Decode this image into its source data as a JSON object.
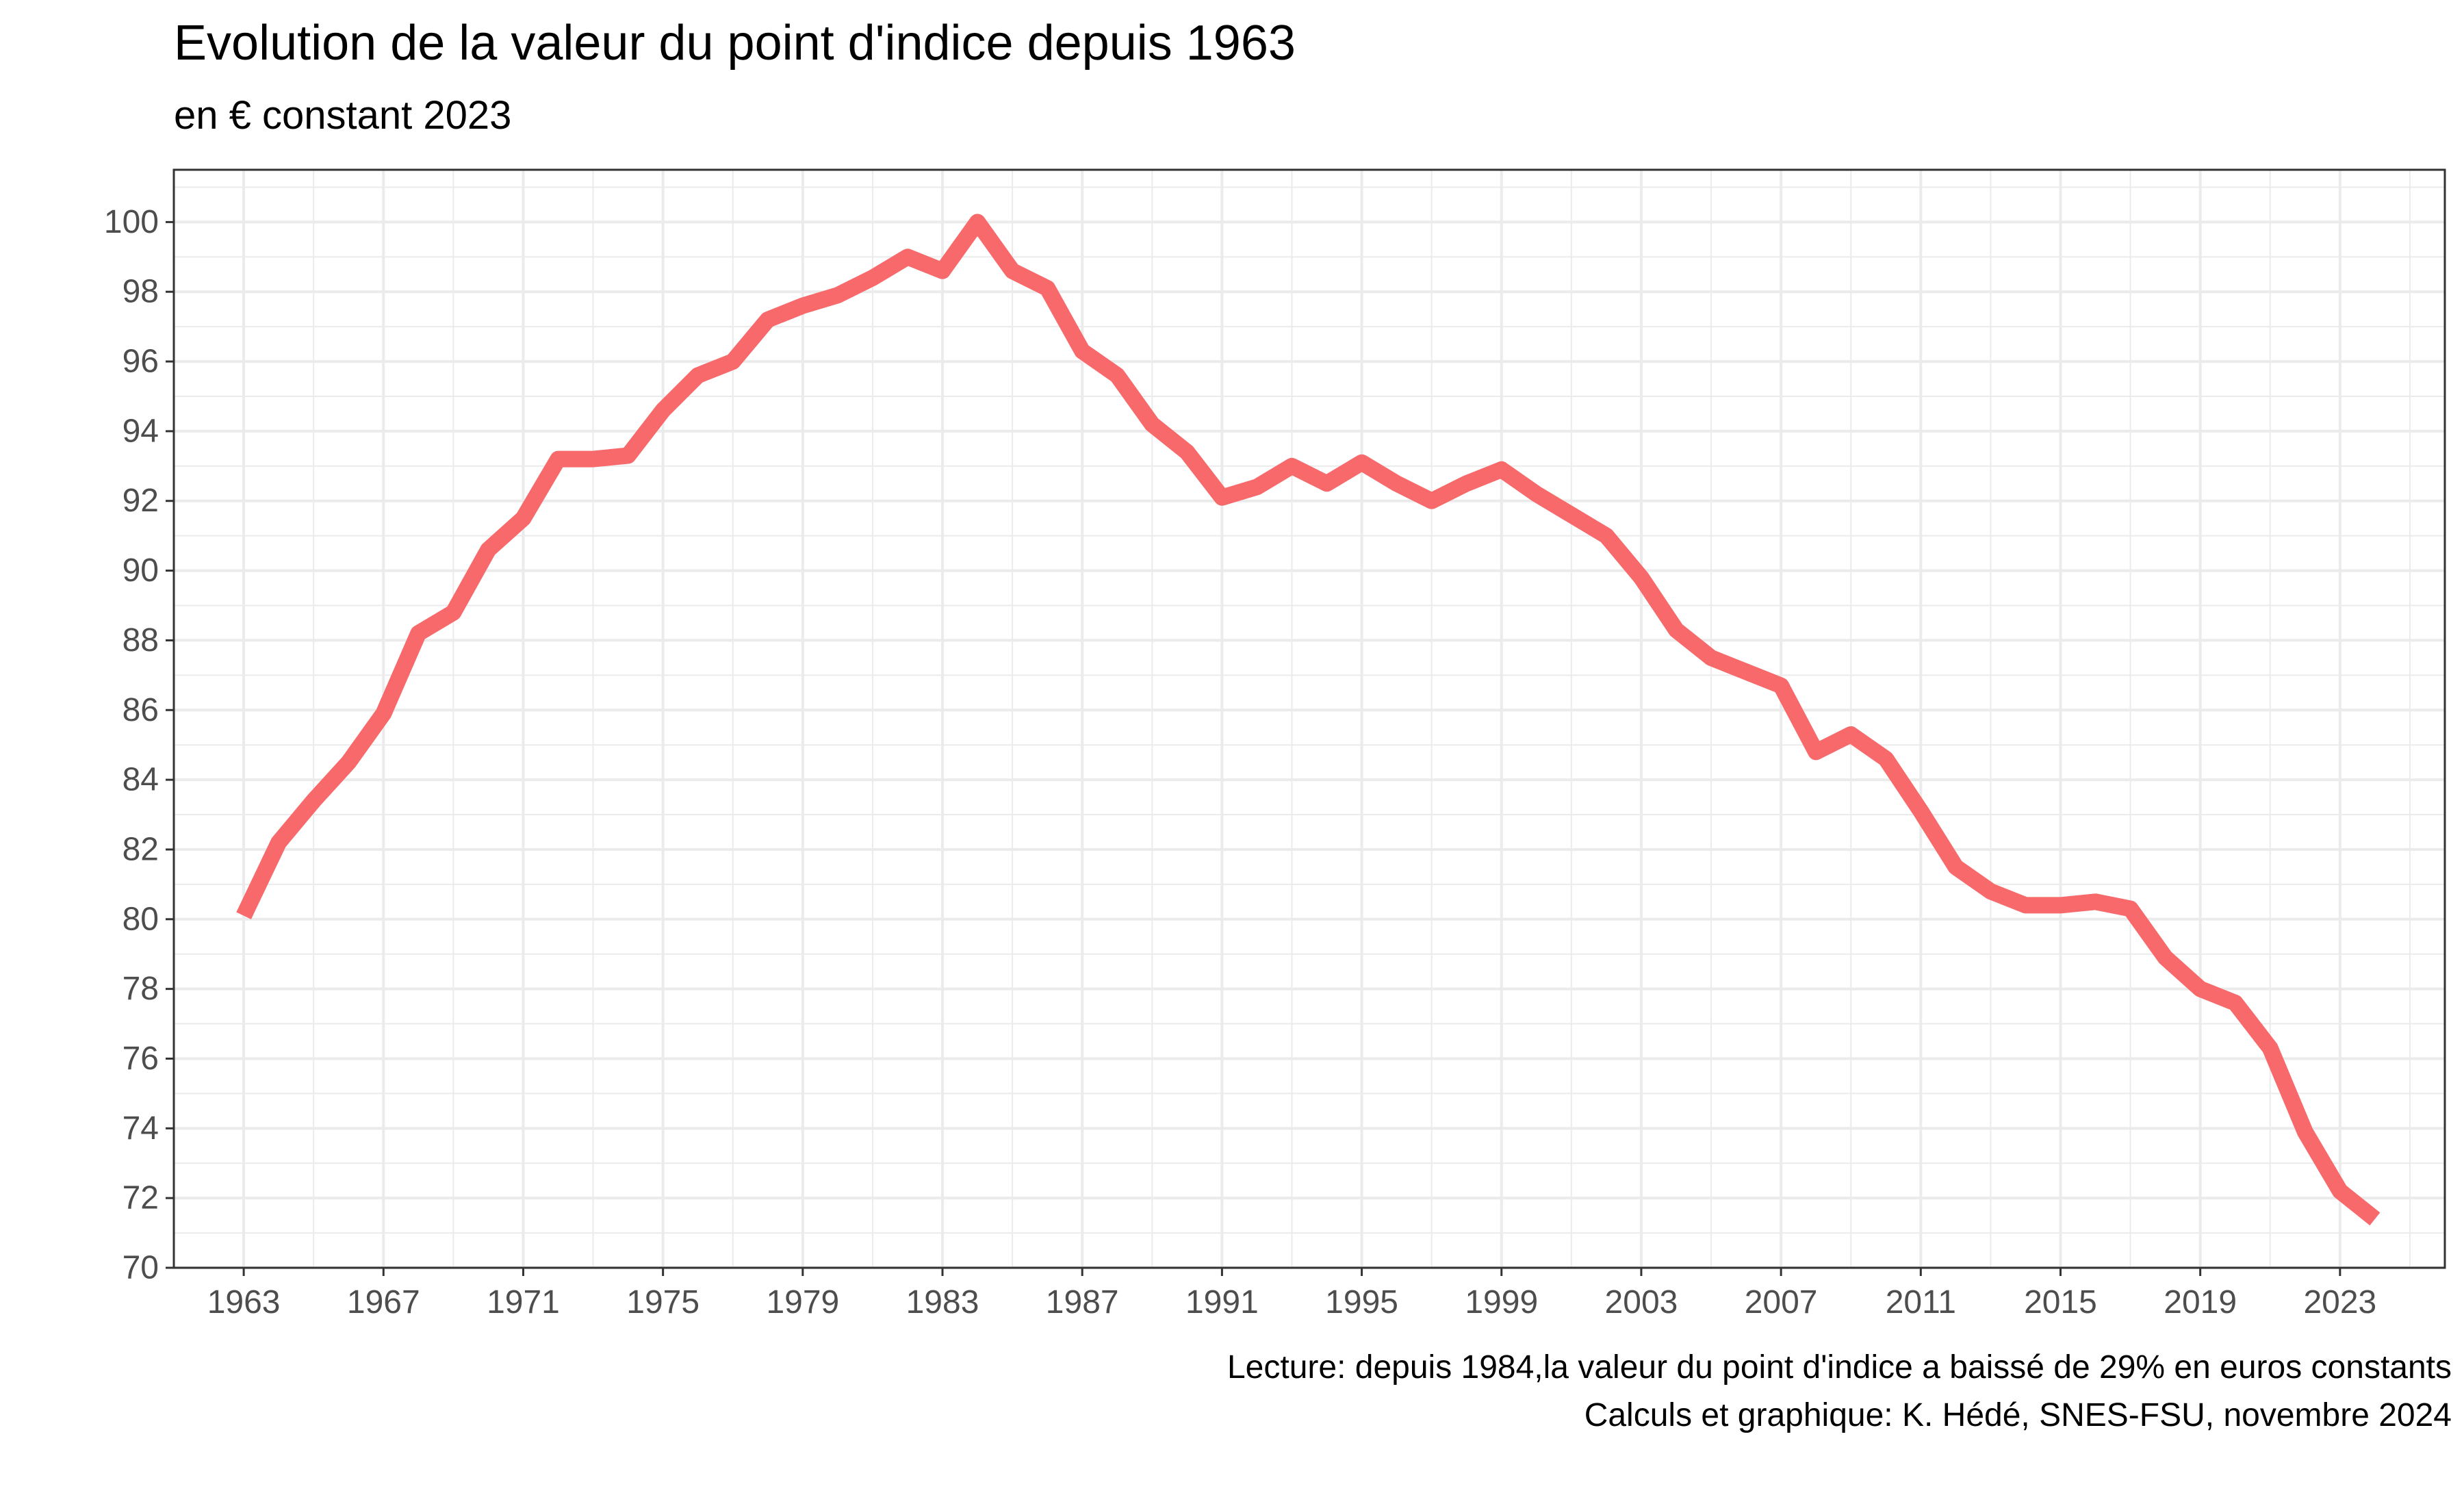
{
  "title": "Evolution de la valeur du point d'indice depuis 1963",
  "subtitle": "en € constant 2023",
  "caption_line1": "Lecture: depuis 1984,la valeur du point d'indice a baissé de 29% en euros constants",
  "caption_line2": "Calculs et graphique: K. Hédé, SNES-FSU, novembre 2024",
  "colors": {
    "line": "#f8696b",
    "grid": "#ebebeb",
    "axis": "#333333",
    "tick_text": "#4d4d4d"
  },
  "chart_data": {
    "type": "line",
    "title": "Evolution de la valeur du point d'indice depuis 1963",
    "subtitle": "en € constant 2023",
    "xlabel": "",
    "ylabel": "",
    "xlim": [
      1961,
      2026
    ],
    "ylim": [
      70,
      101.5
    ],
    "x_ticks": [
      1963,
      1967,
      1971,
      1975,
      1979,
      1983,
      1987,
      1991,
      1995,
      1999,
      2003,
      2007,
      2011,
      2015,
      2019,
      2023
    ],
    "y_ticks": [
      70,
      72,
      74,
      76,
      78,
      80,
      82,
      84,
      86,
      88,
      90,
      92,
      94,
      96,
      98,
      100
    ],
    "grid": true,
    "series": [
      {
        "x": [
          1963,
          1964,
          1965,
          1966,
          1967,
          1968,
          1969,
          1970,
          1971,
          1972,
          1973,
          1974,
          1975,
          1976,
          1977,
          1978,
          1979,
          1980,
          1981,
          1982,
          1983,
          1984,
          1985,
          1986,
          1987,
          1988,
          1989,
          1990,
          1991,
          1992,
          1993,
          1994,
          1995,
          1996,
          1997,
          1998,
          1999,
          2000,
          2001,
          2002,
          2003,
          2004,
          2005,
          2006,
          2007,
          2008,
          2009,
          2010,
          2011,
          2012,
          2013,
          2014,
          2015,
          2016,
          2017,
          2018,
          2019,
          2020,
          2021,
          2022,
          2023,
          2024
        ],
        "values": [
          80.1,
          82.2,
          83.4,
          84.5,
          85.9,
          88.2,
          88.8,
          90.6,
          91.5,
          93.2,
          93.2,
          93.3,
          94.6,
          95.6,
          96.0,
          97.2,
          97.6,
          97.9,
          98.4,
          99.0,
          98.6,
          100.0,
          98.6,
          98.1,
          96.3,
          95.6,
          94.2,
          93.4,
          92.1,
          92.4,
          93.0,
          92.5,
          93.1,
          92.5,
          92.0,
          92.5,
          92.9,
          92.2,
          91.6,
          91.0,
          89.8,
          88.3,
          87.5,
          87.1,
          86.7,
          84.8,
          85.3,
          84.6,
          83.1,
          81.5,
          80.8,
          80.4,
          80.4,
          80.5,
          80.3,
          78.9,
          78.0,
          77.6,
          76.3,
          73.9,
          72.2,
          71.4
        ]
      }
    ]
  }
}
